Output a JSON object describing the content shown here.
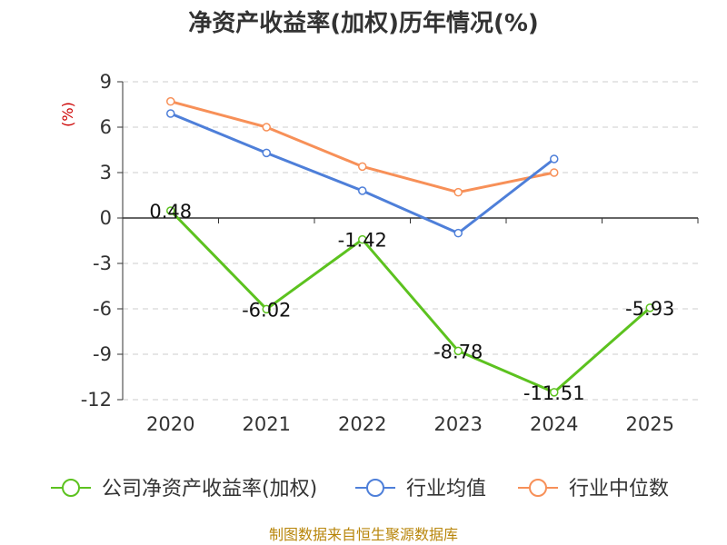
{
  "chart_data": {
    "type": "line",
    "title": "净资产收益率(加权)历年情况(%)",
    "ylabel": "(%)",
    "xlabel": "",
    "categories": [
      "2020",
      "2021",
      "2022",
      "2023",
      "2024",
      "2025"
    ],
    "ylim": [
      -12,
      9
    ],
    "yticks": [
      9,
      6,
      3,
      0,
      -3,
      -6,
      -9,
      -12
    ],
    "grid": true,
    "legend_position": "bottom",
    "series": [
      {
        "name": "公司净资产收益率(加权)",
        "color": "#5cc21f",
        "values": [
          0.48,
          -6.02,
          -1.42,
          -8.78,
          -11.51,
          -5.93
        ],
        "labels": [
          "0.48",
          "-6.02",
          "-1.42",
          "-8.78",
          "-11.51",
          "-5.93"
        ]
      },
      {
        "name": "行业均值",
        "color": "#4e7fd9",
        "values": [
          6.9,
          4.3,
          1.8,
          -1.0,
          3.9,
          null
        ]
      },
      {
        "name": "行业中位数",
        "color": "#f79058",
        "values": [
          7.7,
          6.0,
          3.4,
          1.7,
          3.0,
          null
        ]
      }
    ],
    "source": "制图数据来自恒生聚源数据库"
  }
}
